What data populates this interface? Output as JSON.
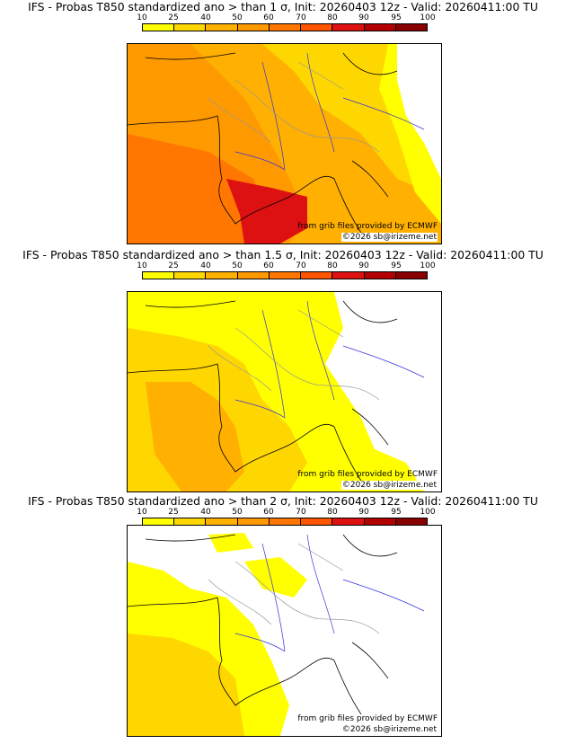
{
  "legend": {
    "labels": [
      "10",
      "25",
      "40",
      "50",
      "60",
      "70",
      "80",
      "90",
      "95",
      "100"
    ],
    "colors": [
      "#ffff00",
      "#ffd700",
      "#ffb000",
      "#ff9900",
      "#ff7700",
      "#ff5500",
      "#dd1111",
      "#b30000",
      "#880000",
      "#5a0000"
    ]
  },
  "colors": {
    "lvl10": "#ffff00",
    "lvl25": "#ffd700",
    "lvl40": "#ffb000",
    "lvl50": "#ff9900",
    "lvl60": "#ff7700",
    "lvl70": "#ff5500",
    "lvl80": "#dd1111",
    "coast": "#000000",
    "rivers": "#3333dd",
    "borders": "#999999"
  },
  "credits": {
    "source": "from grib files provided by ECMWF",
    "copyright": "©2026 sb@irizeme.net"
  },
  "panels": [
    {
      "title": "IFS - Probas T850  standardized ano > than 1 σ, Init: 20260403 12z - Valid: 20260411:00 TU"
    },
    {
      "title": "IFS - Probas T850  standardized ano > than 1.5 σ, Init: 20260403 12z - Valid: 20260411:00 TU"
    },
    {
      "title": "IFS - Probas T850  standardized ano > than 2 σ, Init: 20260403 12z - Valid: 20260411:00 TU"
    }
  ]
}
